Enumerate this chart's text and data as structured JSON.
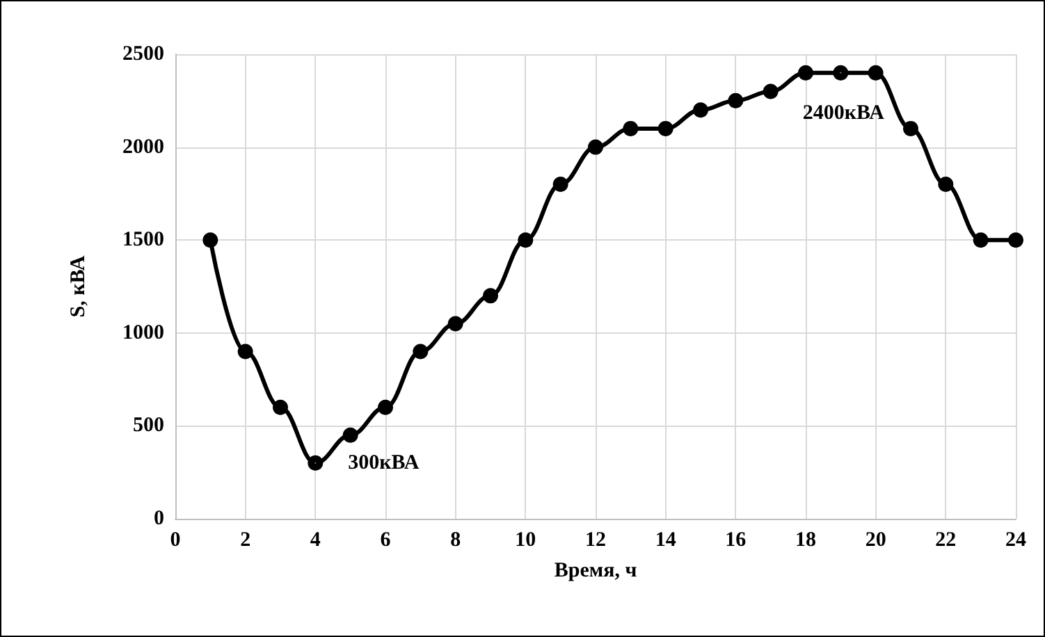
{
  "chart_data": {
    "type": "line",
    "xlabel": "Время, ч",
    "ylabel": "S, кВА",
    "series": [
      {
        "color": "#000000",
        "x": [
          1,
          2,
          3,
          4,
          5,
          6,
          7,
          8,
          9,
          10,
          11,
          12,
          13,
          14,
          15,
          16,
          17,
          18,
          19,
          20,
          21,
          22,
          23,
          24
        ],
        "values": [
          1500,
          900,
          600,
          300,
          450,
          600,
          900,
          1050,
          1200,
          1500,
          1800,
          2000,
          2100,
          2100,
          2200,
          2250,
          2300,
          2400,
          2400,
          2400,
          2100,
          1800,
          1500,
          1500
        ]
      }
    ],
    "xlim": [
      0,
      24
    ],
    "xticks": [
      0,
      2,
      4,
      6,
      8,
      10,
      12,
      14,
      16,
      18,
      20,
      22,
      24
    ],
    "ylim": [
      0,
      2500
    ],
    "yticks": [
      0,
      500,
      1000,
      1500,
      2000,
      2500
    ],
    "grid": true,
    "marker": "circle",
    "line_style": "solid",
    "annotations": [
      {
        "text": "300кВА",
        "x": 4,
        "y": 300
      },
      {
        "text": "2400кВА",
        "x": 19,
        "y": 2400
      }
    ]
  }
}
